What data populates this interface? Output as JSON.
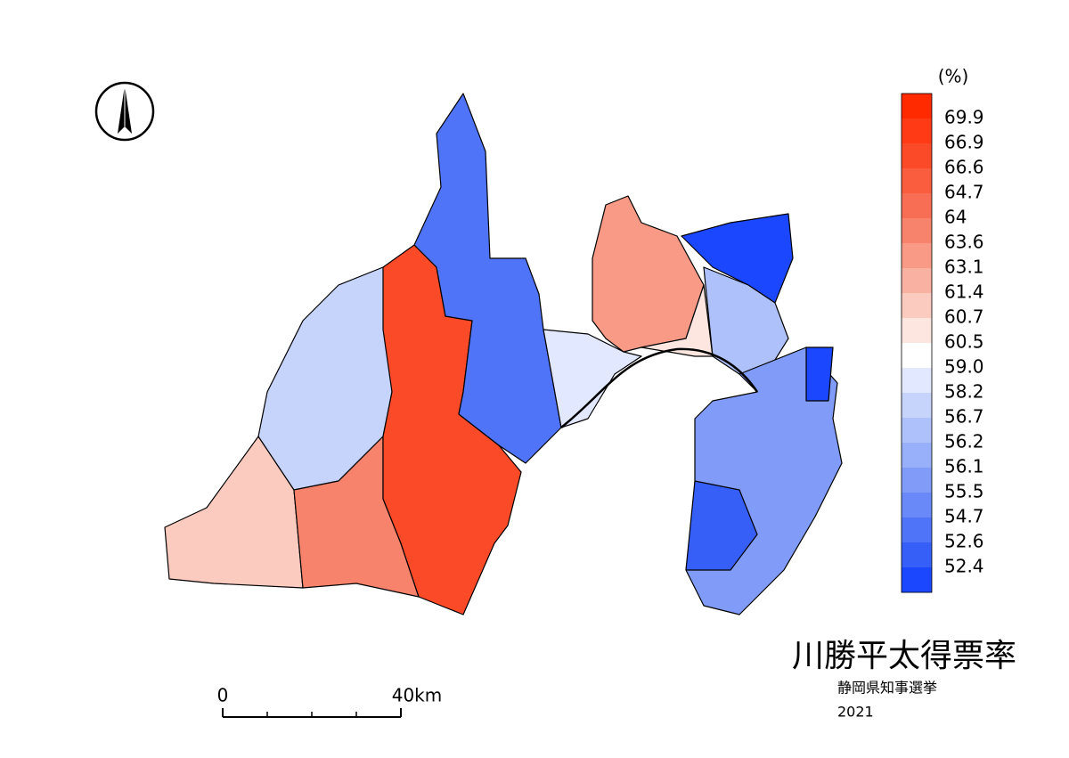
{
  "map": {
    "title": "川勝平太得票率",
    "subtitle": "静岡県知事選挙",
    "year": "2021",
    "legend": {
      "unit": "(%)",
      "breaks": [
        69.9,
        66.9,
        66.6,
        64.7,
        64.0,
        63.6,
        63.1,
        61.4,
        60.7,
        60.5,
        {
          "value": 59,
          "label": "59.0"
        },
        58.2,
        56.7,
        56.2,
        56.1,
        55.5,
        54.7,
        52.6,
        52.4
      ],
      "colors": [
        "#ff2a00",
        "#ff3a14",
        "#fb4a28",
        "#fa5c3e",
        "#f86e54",
        "#f7836c",
        "#f89a86",
        "#f9b1a2",
        "#fbcbc0",
        "#fde6e0",
        "#ffffff",
        "#e2e8ff",
        "#c6d3fb",
        "#afc1fa",
        "#98aff9",
        "#809cf8",
        "#6889f7",
        "#4f74f7",
        "#365ff8",
        "#1a47ff"
      ]
    },
    "scale": {
      "start": "0",
      "end": "40km"
    }
  }
}
